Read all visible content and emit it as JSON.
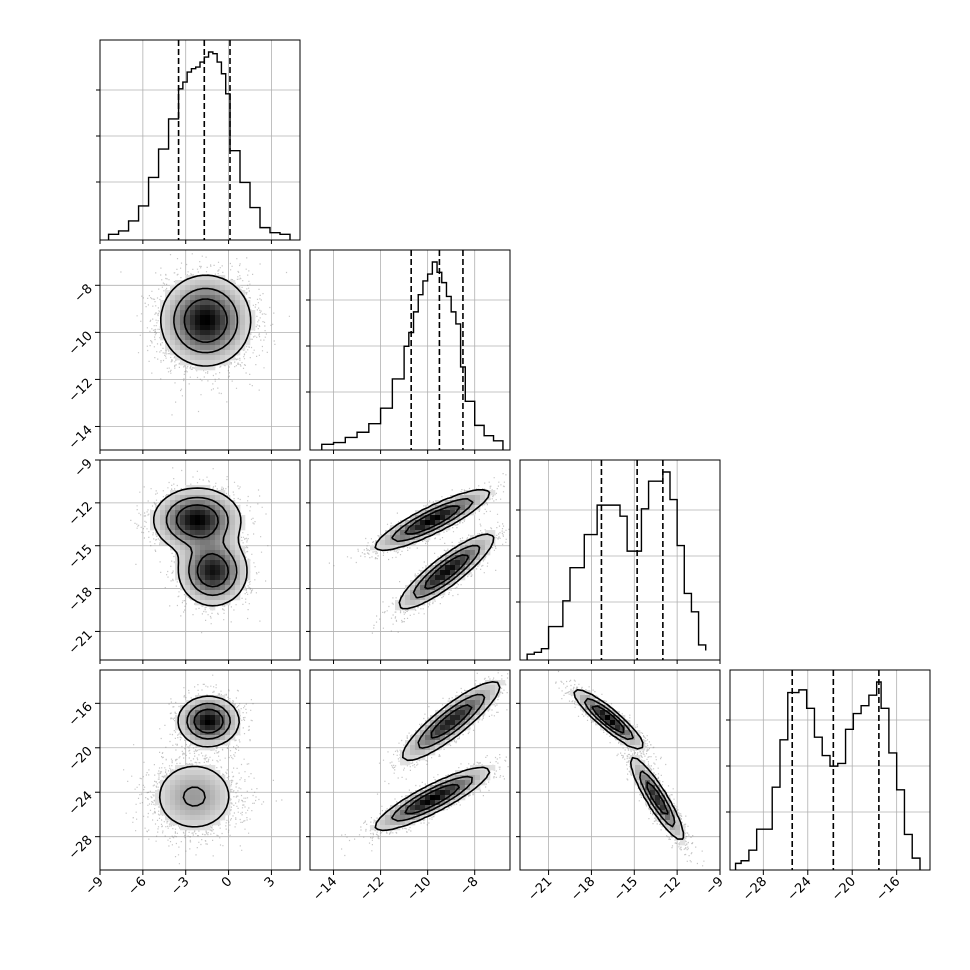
{
  "chart_data": {
    "type": "corner",
    "grid": true,
    "parameters": [
      {
        "range": [
          -9,
          5
        ],
        "ticks": [
          -9,
          -6,
          -3,
          0,
          3
        ],
        "quantiles": [
          -3.5,
          -1.7,
          0.1
        ]
      },
      {
        "range": [
          -15,
          -6.5
        ],
        "ticks": [
          -14,
          -12,
          -10,
          -8
        ],
        "quantiles": [
          -10.7,
          -9.5,
          -8.5
        ]
      },
      {
        "range": [
          -23,
          -9
        ],
        "ticks": [
          -21,
          -18,
          -15,
          -12,
          -9
        ],
        "quantiles": [
          -17.3,
          -14.8,
          -13.0
        ]
      },
      {
        "range": [
          -31,
          -13
        ],
        "ticks": [
          -28,
          -24,
          -20,
          -16
        ],
        "quantiles": [
          -25.4,
          -21.7,
          -17.6
        ]
      }
    ],
    "histograms": [
      {
        "edges": [
          -8.4,
          -7.7,
          -7.0,
          -6.3,
          -5.6,
          -4.9,
          -4.2,
          -3.5,
          -3.2,
          -2.9,
          -2.6,
          -2.3,
          -2.0,
          -1.7,
          -1.4,
          -1.1,
          -0.8,
          -0.5,
          -0.2,
          0.1,
          0.8,
          1.5,
          2.2,
          2.9,
          3.6,
          4.3
        ],
        "counts": [
          1,
          3,
          9,
          18,
          35,
          52,
          70,
          88,
          92,
          98,
          100,
          101,
          104,
          107,
          110,
          109,
          104,
          97,
          85,
          51,
          32,
          17,
          5,
          2,
          1
        ]
      },
      {
        "edges": [
          -14.5,
          -14.0,
          -13.5,
          -13.0,
          -12.5,
          -12.0,
          -11.5,
          -11.0,
          -10.8,
          -10.6,
          -10.4,
          -10.2,
          -10.0,
          -9.8,
          -9.6,
          -9.4,
          -9.2,
          -9.0,
          -8.8,
          -8.6,
          -8.4,
          -8.0,
          -7.6,
          -7.2,
          -6.8
        ],
        "counts": [
          1,
          2,
          5,
          8,
          13,
          22,
          39,
          58,
          66,
          78,
          88,
          96,
          100,
          107,
          101,
          95,
          87,
          78,
          71,
          46,
          26,
          12,
          6,
          3
        ]
      },
      {
        "edges": [
          -22.5,
          -22.0,
          -21.5,
          -21.0,
          -20.0,
          -19.5,
          -18.5,
          -17.6,
          -17.0,
          -16.6,
          -16.0,
          -15.5,
          -15.0,
          -14.5,
          -14.0,
          -13.5,
          -13.0,
          -12.5,
          -12.0,
          -11.5,
          -11.0,
          -10.5,
          -10.0
        ],
        "counts": [
          1,
          2,
          4,
          16,
          30,
          48,
          66,
          82,
          82,
          82,
          76,
          57,
          57,
          80,
          95,
          95,
          100,
          85,
          60,
          34,
          24,
          6,
          3
        ]
      },
      {
        "edges": [
          -30.5,
          -30.0,
          -29.3,
          -28.6,
          -27.2,
          -26.5,
          -25.8,
          -24.8,
          -24.1,
          -23.4,
          -22.7,
          -22.0,
          -21.3,
          -20.6,
          -19.9,
          -19.2,
          -18.5,
          -17.8,
          -17.4,
          -16.7,
          -16.0,
          -15.3,
          -14.6,
          -13.9
        ],
        "counts": [
          1,
          2,
          6,
          14,
          30,
          48,
          66,
          67,
          60,
          49,
          42,
          38,
          39,
          52,
          58,
          61,
          65,
          70,
          60,
          43,
          29,
          12,
          3
        ]
      }
    ],
    "pairs": [
      {
        "row": 1,
        "col": 0,
        "points": 3500,
        "corr": 0,
        "modes": [
          {
            "mx": -1.6,
            "my": -9.5,
            "sx": 1.55,
            "sy": 0.95,
            "w": 1
          }
        ]
      },
      {
        "row": 2,
        "col": 0,
        "points": 3500,
        "corr": 0,
        "modes": [
          {
            "mx": -2.2,
            "my": -13.2,
            "sx": 1.5,
            "sy": 1.1,
            "w": 0.55
          },
          {
            "mx": -1.1,
            "my": -16.8,
            "sx": 1.2,
            "sy": 1.2,
            "w": 0.45
          }
        ]
      },
      {
        "row": 2,
        "col": 1,
        "points": 3500,
        "corr": 0.88,
        "modes": [
          {
            "mx": -9.8,
            "my": -13.2,
            "sx": 1.2,
            "sy": 1.05,
            "w": 0.5
          },
          {
            "mx": -9.2,
            "my": -16.8,
            "sx": 1.0,
            "sy": 1.3,
            "w": 0.5
          }
        ]
      },
      {
        "row": 3,
        "col": 0,
        "points": 3500,
        "corr": 0,
        "modes": [
          {
            "mx": -1.4,
            "my": -17.6,
            "sx": 1.05,
            "sy": 1.1,
            "w": 0.5
          },
          {
            "mx": -2.4,
            "my": -24.4,
            "sx": 1.6,
            "sy": 1.8,
            "w": 0.5
          }
        ]
      },
      {
        "row": 3,
        "col": 1,
        "points": 3500,
        "corr": 0.88,
        "modes": [
          {
            "mx": -9.0,
            "my": -17.6,
            "sx": 1.05,
            "sy": 1.8,
            "w": 0.5
          },
          {
            "mx": -9.8,
            "my": -24.6,
            "sx": 1.2,
            "sy": 1.4,
            "w": 0.5
          }
        ]
      },
      {
        "row": 3,
        "col": 2,
        "points": 3500,
        "corr": -0.9,
        "modes": [
          {
            "mx": -16.8,
            "my": -17.4,
            "sx": 1.2,
            "sy": 1.3,
            "w": 0.5
          },
          {
            "mx": -13.4,
            "my": -24.6,
            "sx": 0.95,
            "sy": 1.9,
            "w": 0.5
          }
        ]
      }
    ]
  }
}
